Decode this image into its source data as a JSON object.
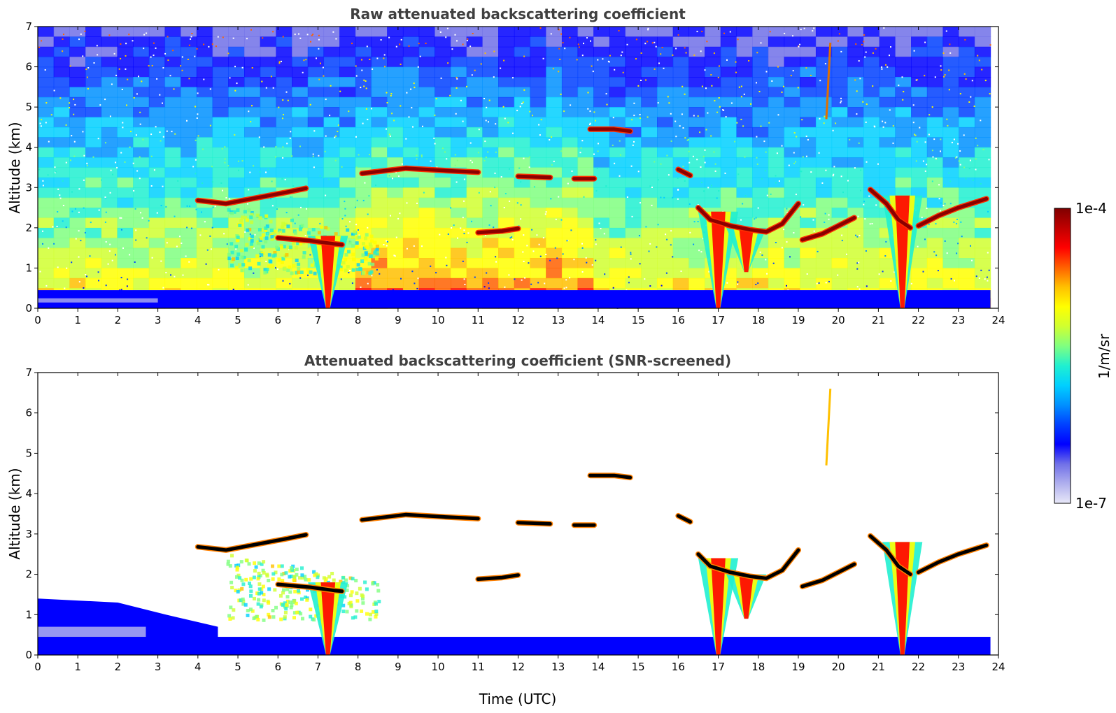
{
  "chart_data": [
    {
      "type": "heatmap",
      "title": "Raw attenuated backscattering coefficient",
      "xlabel": "",
      "ylabel": "Altitude (km)",
      "xlim": [
        0,
        24
      ],
      "ylim": [
        0,
        7
      ],
      "x_ticks": [
        "0",
        "1",
        "2",
        "3",
        "4",
        "5",
        "6",
        "7",
        "8",
        "9",
        "10",
        "11",
        "12",
        "13",
        "14",
        "15",
        "16",
        "17",
        "18",
        "19",
        "20",
        "21",
        "22",
        "23",
        "24"
      ],
      "y_ticks": [
        "0",
        "1",
        "2",
        "3",
        "4",
        "5",
        "6",
        "7"
      ],
      "background": "noisy",
      "layers": [
        {
          "kind": "boundary_layer",
          "x": [
            0,
            23.8
          ],
          "top": 0.45
        },
        {
          "kind": "aerosol",
          "x": [
            4.7,
            8.5
          ],
          "alt": [
            0.9,
            2.6
          ]
        },
        {
          "kind": "plume",
          "x": 7.25,
          "alt": [
            0,
            1.8
          ]
        },
        {
          "kind": "plume",
          "x": 17.0,
          "alt": [
            0,
            2.4
          ]
        },
        {
          "kind": "plume",
          "x": 17.7,
          "alt": [
            0.9,
            2.0
          ]
        },
        {
          "kind": "plume",
          "x": 21.6,
          "alt": [
            0,
            2.8
          ]
        },
        {
          "kind": "cloud",
          "points": [
            [
              4,
              2.68
            ],
            [
              4.7,
              2.6
            ],
            [
              5.5,
              2.75
            ],
            [
              6.2,
              2.88
            ],
            [
              6.7,
              2.98
            ]
          ]
        },
        {
          "kind": "cloud",
          "points": [
            [
              6,
              1.75
            ],
            [
              6.8,
              1.68
            ],
            [
              7.4,
              1.6
            ],
            [
              7.6,
              1.58
            ]
          ]
        },
        {
          "kind": "cloud",
          "points": [
            [
              8.1,
              3.35
            ],
            [
              9.2,
              3.48
            ],
            [
              10.2,
              3.42
            ],
            [
              11.0,
              3.38
            ]
          ]
        },
        {
          "kind": "cloud",
          "points": [
            [
              11.0,
              1.88
            ],
            [
              11.6,
              1.92
            ],
            [
              12.0,
              1.98
            ]
          ]
        },
        {
          "kind": "cloud",
          "points": [
            [
              12.0,
              3.28
            ],
            [
              12.8,
              3.25
            ]
          ]
        },
        {
          "kind": "cloud",
          "points": [
            [
              13.4,
              3.22
            ],
            [
              13.9,
              3.22
            ]
          ]
        },
        {
          "kind": "cloud",
          "points": [
            [
              13.8,
              4.45
            ],
            [
              14.4,
              4.45
            ],
            [
              14.8,
              4.4
            ]
          ]
        },
        {
          "kind": "cloud",
          "points": [
            [
              16.0,
              3.45
            ],
            [
              16.3,
              3.3
            ]
          ]
        },
        {
          "kind": "cloud",
          "points": [
            [
              16.5,
              2.5
            ],
            [
              16.8,
              2.2
            ],
            [
              17.3,
              2.05
            ],
            [
              17.8,
              1.95
            ],
            [
              18.2,
              1.9
            ],
            [
              18.6,
              2.1
            ],
            [
              19.0,
              2.6
            ]
          ]
        },
        {
          "kind": "cloud",
          "points": [
            [
              19.1,
              1.7
            ],
            [
              19.6,
              1.85
            ],
            [
              20.0,
              2.05
            ],
            [
              20.4,
              2.25
            ]
          ]
        },
        {
          "kind": "cloud",
          "points": [
            [
              20.8,
              2.95
            ],
            [
              21.2,
              2.6
            ],
            [
              21.5,
              2.2
            ],
            [
              21.8,
              2.0
            ]
          ]
        },
        {
          "kind": "cloud",
          "points": [
            [
              22.0,
              2.05
            ],
            [
              22.5,
              2.3
            ],
            [
              23.0,
              2.5
            ],
            [
              23.7,
              2.72
            ]
          ]
        },
        {
          "kind": "cirrus",
          "x": 19.7,
          "alt": [
            4.7,
            6.6
          ]
        }
      ]
    },
    {
      "type": "heatmap",
      "title": "Attenuated backscattering coefficient (SNR-screened)",
      "xlabel": "Time (UTC)",
      "ylabel": "Altitude (km)",
      "xlim": [
        0,
        24
      ],
      "ylim": [
        0,
        7
      ],
      "x_ticks": [
        "0",
        "1",
        "2",
        "3",
        "4",
        "5",
        "6",
        "7",
        "8",
        "9",
        "10",
        "11",
        "12",
        "13",
        "14",
        "15",
        "16",
        "17",
        "18",
        "19",
        "20",
        "21",
        "22",
        "23",
        "24"
      ],
      "y_ticks": [
        "0",
        "1",
        "2",
        "3",
        "4",
        "5",
        "6",
        "7"
      ],
      "background": "screened",
      "layers": [
        {
          "kind": "boundary_layer",
          "x": [
            0,
            23.8
          ],
          "top": 0.45
        },
        {
          "kind": "residual_layer",
          "x": [
            0,
            4.5
          ],
          "top": 1.4
        },
        {
          "kind": "aerosol",
          "x": [
            4.7,
            8.5
          ],
          "alt": [
            0.9,
            2.6
          ]
        },
        {
          "kind": "plume",
          "x": 7.25,
          "alt": [
            0,
            1.8
          ]
        },
        {
          "kind": "plume",
          "x": 17.0,
          "alt": [
            0,
            2.4
          ]
        },
        {
          "kind": "plume",
          "x": 17.7,
          "alt": [
            0.9,
            2.0
          ]
        },
        {
          "kind": "plume",
          "x": 21.6,
          "alt": [
            0,
            2.8
          ]
        },
        {
          "kind": "cloud",
          "points": [
            [
              4,
              2.68
            ],
            [
              4.7,
              2.6
            ],
            [
              5.5,
              2.75
            ],
            [
              6.2,
              2.88
            ],
            [
              6.7,
              2.98
            ]
          ]
        },
        {
          "kind": "cloud",
          "points": [
            [
              6,
              1.75
            ],
            [
              6.8,
              1.68
            ],
            [
              7.4,
              1.6
            ],
            [
              7.6,
              1.58
            ]
          ]
        },
        {
          "kind": "cloud",
          "points": [
            [
              8.1,
              3.35
            ],
            [
              9.2,
              3.48
            ],
            [
              10.2,
              3.42
            ],
            [
              11.0,
              3.38
            ]
          ]
        },
        {
          "kind": "cloud",
          "points": [
            [
              11.0,
              1.88
            ],
            [
              11.6,
              1.92
            ],
            [
              12.0,
              1.98
            ]
          ]
        },
        {
          "kind": "cloud",
          "points": [
            [
              12.0,
              3.28
            ],
            [
              12.8,
              3.25
            ]
          ]
        },
        {
          "kind": "cloud",
          "points": [
            [
              13.4,
              3.22
            ],
            [
              13.9,
              3.22
            ]
          ]
        },
        {
          "kind": "cloud",
          "points": [
            [
              13.8,
              4.45
            ],
            [
              14.4,
              4.45
            ],
            [
              14.8,
              4.4
            ]
          ]
        },
        {
          "kind": "cloud",
          "points": [
            [
              16.0,
              3.45
            ],
            [
              16.3,
              3.3
            ]
          ]
        },
        {
          "kind": "cloud",
          "points": [
            [
              16.5,
              2.5
            ],
            [
              16.8,
              2.2
            ],
            [
              17.3,
              2.05
            ],
            [
              17.8,
              1.95
            ],
            [
              18.2,
              1.9
            ],
            [
              18.6,
              2.1
            ],
            [
              19.0,
              2.6
            ]
          ]
        },
        {
          "kind": "cloud",
          "points": [
            [
              19.1,
              1.7
            ],
            [
              19.6,
              1.85
            ],
            [
              20.0,
              2.05
            ],
            [
              20.4,
              2.25
            ]
          ]
        },
        {
          "kind": "cloud",
          "points": [
            [
              20.8,
              2.95
            ],
            [
              21.2,
              2.6
            ],
            [
              21.5,
              2.2
            ],
            [
              21.8,
              2.0
            ]
          ]
        },
        {
          "kind": "cloud",
          "points": [
            [
              22.0,
              2.05
            ],
            [
              22.5,
              2.3
            ],
            [
              23.0,
              2.5
            ],
            [
              23.7,
              2.72
            ]
          ]
        },
        {
          "kind": "cirrus",
          "x": 19.7,
          "alt": [
            4.7,
            6.6
          ]
        }
      ]
    }
  ],
  "colorbar": {
    "label": "1/m/sr",
    "max_label": "1e-4",
    "min_label": "1e-7",
    "colormap": [
      "#e8e8f8",
      "#b0b0ee",
      "#7070e8",
      "#0000ff",
      "#0040ff",
      "#0090ff",
      "#00d0ff",
      "#20f0d0",
      "#80ff80",
      "#d0ff30",
      "#ffff00",
      "#ffc000",
      "#ff6000",
      "#ff0000",
      "#c00000",
      "#800000"
    ]
  }
}
